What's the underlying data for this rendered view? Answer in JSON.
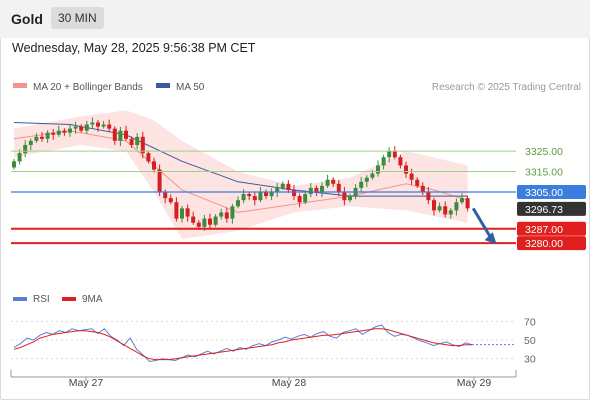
{
  "header": {
    "title": "Gold",
    "timeframe": "30 MIN",
    "timestamp": "Wednesday, May 28, 2025 9:56:38 PM CET"
  },
  "colors": {
    "ma20": "#f4948f",
    "ma50": "#3d5a9e",
    "bands_fill": "#fde3e2",
    "up": "#3d8c3d",
    "down": "#d42020",
    "support": "#e01f1f",
    "resistance_line": "#9fd08a",
    "resistance_text": "#5a9e3c",
    "current_line": "#3b7ddd",
    "last": "#333333",
    "rsi": "#5b7fd6",
    "rsi_ma": "#e01f1f",
    "arrow": "#2e5f9e"
  },
  "chart_data": {
    "type": "candlestick",
    "legend": [
      {
        "name": "MA 20 + Bollinger Bands"
      },
      {
        "name": "MA 50"
      }
    ],
    "watermark": "Research © 2025 Trading Central",
    "x_ticks": [
      "May 27",
      "May 28",
      "May 29"
    ],
    "ylim": [
      3260,
      3350
    ],
    "resistance_levels": [
      3325.0,
      3315.0
    ],
    "pivot": 3305.0,
    "last_price": 3296.73,
    "support_levels": [
      3287.0,
      3280.0
    ],
    "level_labels": [
      "3325.00",
      "3315.00",
      "3305.00",
      "3296.73",
      "3287.00",
      "3280.00"
    ],
    "closes": [
      3320,
      3324,
      3328,
      3330,
      3332,
      3331,
      3334,
      3333,
      3335,
      3334,
      3336,
      3337,
      3335,
      3338,
      3339,
      3337,
      3338,
      3336,
      3330,
      3335,
      3331,
      3328,
      3332,
      3324,
      3320,
      3316,
      3305,
      3302,
      3300,
      3292,
      3297,
      3293,
      3290,
      3288,
      3292,
      3289,
      3293,
      3295,
      3292,
      3298,
      3301,
      3304,
      3303,
      3301,
      3305,
      3303,
      3305,
      3307,
      3309,
      3306,
      3303,
      3300,
      3304,
      3307,
      3305,
      3308,
      3311,
      3309,
      3305,
      3301,
      3303,
      3307,
      3310,
      3312,
      3314,
      3318,
      3322,
      3325,
      3322,
      3318,
      3314,
      3311,
      3308,
      3305,
      3301,
      3296,
      3298,
      3294,
      3296,
      3300,
      3302,
      3297
    ],
    "ma20_points": [
      [
        0,
        3331
      ],
      [
        10,
        3335
      ],
      [
        20,
        3330
      ],
      [
        30,
        3306
      ],
      [
        40,
        3295
      ],
      [
        50,
        3299
      ],
      [
        60,
        3303
      ],
      [
        70,
        3309
      ],
      [
        75,
        3306
      ],
      [
        81,
        3301
      ]
    ],
    "ma50_points": [
      [
        0,
        3339
      ],
      [
        10,
        3338
      ],
      [
        20,
        3333
      ],
      [
        30,
        3320
      ],
      [
        40,
        3310
      ],
      [
        50,
        3306
      ],
      [
        60,
        3303
      ],
      [
        70,
        3303
      ],
      [
        81,
        3303
      ]
    ],
    "bollinger_upper": [
      [
        0,
        3336
      ],
      [
        12,
        3342
      ],
      [
        20,
        3345
      ],
      [
        25,
        3340
      ],
      [
        30,
        3330
      ],
      [
        40,
        3315
      ],
      [
        50,
        3308
      ],
      [
        60,
        3312
      ],
      [
        70,
        3325
      ],
      [
        81,
        3318
      ]
    ],
    "bollinger_lower": [
      [
        0,
        3322
      ],
      [
        12,
        3328
      ],
      [
        20,
        3325
      ],
      [
        25,
        3305
      ],
      [
        30,
        3282
      ],
      [
        40,
        3286
      ],
      [
        50,
        3295
      ],
      [
        60,
        3298
      ],
      [
        70,
        3296
      ],
      [
        81,
        3290
      ]
    ],
    "forecast_arrow": {
      "from_index": 82,
      "from_value": 3297,
      "to_index": 86,
      "to_value": 3280
    },
    "rsi": {
      "legend": [
        {
          "name": "RSI"
        },
        {
          "name": "9MA"
        }
      ],
      "levels": [
        70,
        50,
        30
      ],
      "ylim": [
        20,
        80
      ],
      "values": [
        42,
        46,
        52,
        50,
        55,
        58,
        56,
        60,
        58,
        62,
        60,
        61,
        62,
        57,
        62,
        54,
        50,
        44,
        52,
        40,
        34,
        27,
        28,
        30,
        29,
        28,
        31,
        34,
        32,
        35,
        38,
        35,
        38,
        41,
        38,
        42,
        40,
        44,
        46,
        44,
        48,
        50,
        53,
        51,
        54,
        56,
        53,
        57,
        59,
        54,
        52,
        58,
        60,
        62,
        56,
        60,
        64,
        66,
        58,
        54,
        56,
        55,
        52,
        49,
        47,
        44,
        46,
        48,
        45,
        43,
        47,
        45
      ],
      "ma": [
        40,
        42,
        45,
        48,
        52,
        54,
        56,
        57,
        58,
        59,
        60,
        60,
        59,
        58,
        56,
        53,
        49,
        45,
        41,
        37,
        33,
        30,
        29,
        29,
        29,
        30,
        31,
        32,
        33,
        34,
        35,
        36,
        37,
        38,
        39,
        40,
        41,
        42,
        43,
        44,
        45,
        47,
        48,
        50,
        51,
        52,
        53,
        54,
        55,
        55,
        56,
        57,
        58,
        59,
        60,
        61,
        62,
        62,
        61,
        59,
        57,
        55,
        53,
        51,
        49,
        47,
        46,
        45,
        44,
        44,
        45,
        45
      ]
    }
  }
}
